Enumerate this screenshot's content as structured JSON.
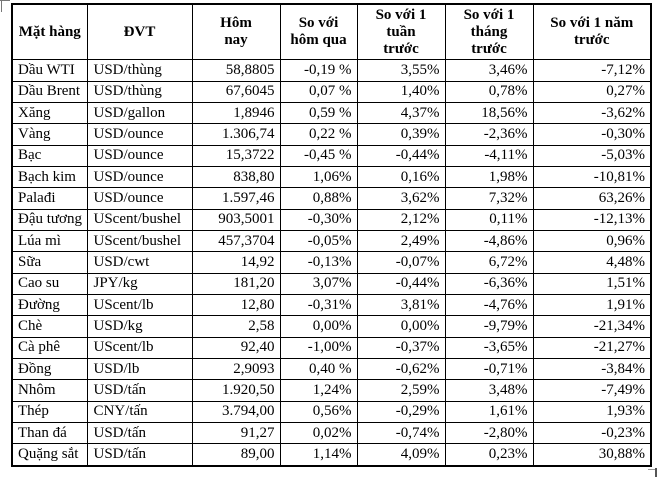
{
  "page": {
    "background_color": "#ffffff",
    "description_colors": {
      "header_accent": "#000080",
      "table_border": "#000000",
      "text": "#000000"
    }
  },
  "table": {
    "header": {
      "columns": [
        {
          "label": "Mặt hàng"
        },
        {
          "label": "ĐVT"
        },
        {
          "label": "Hôm nay"
        },
        {
          "label": "So với hôm qua"
        },
        {
          "label": "So với 1 tuần trước"
        },
        {
          "label": "So với 1 tháng trước"
        },
        {
          "label": "So với 1 năm trước"
        }
      ]
    },
    "rows": [
      {
        "name": "Dầu WTI",
        "unit": "USD/thùng",
        "today": "58,8805",
        "vs_yesterday": "-0,19 %",
        "vs_week": "3,55%",
        "vs_month": "3,46%",
        "vs_year": "-7,12%"
      },
      {
        "name": "Dầu Brent",
        "unit": "USD/thùng",
        "today": "67,6045",
        "vs_yesterday": "0,07 %",
        "vs_week": "1,40%",
        "vs_month": "0,78%",
        "vs_year": "0,27%"
      },
      {
        "name": "Xăng",
        "unit": "USD/gallon",
        "today": "1,8946",
        "vs_yesterday": "0,59 %",
        "vs_week": "4,37%",
        "vs_month": "18,56%",
        "vs_year": "-3,62%"
      },
      {
        "name": "Vàng",
        "unit": "USD/ounce",
        "today": "1.306,74",
        "vs_yesterday": "0,22 %",
        "vs_week": "0,39%",
        "vs_month": "-2,36%",
        "vs_year": "-0,30%"
      },
      {
        "name": "Bạc",
        "unit": "USD/ounce",
        "today": "15,3722",
        "vs_yesterday": "-0,45 %",
        "vs_week": "-0,44%",
        "vs_month": "-4,11%",
        "vs_year": "-5,03%"
      },
      {
        "name": "Bạch kim",
        "unit": "USD/ounce",
        "today": "838,80",
        "vs_yesterday": "1,06%",
        "vs_week": "0,16%",
        "vs_month": "1,98%",
        "vs_year": "-10,81%"
      },
      {
        "name": "Palađi",
        "unit": "USD/ounce",
        "today": "1.597,46",
        "vs_yesterday": "0,88%",
        "vs_week": "3,62%",
        "vs_month": "7,32%",
        "vs_year": "63,26%"
      },
      {
        "name": "Đậu tương",
        "unit": "UScent/bushel",
        "today": "903,5001",
        "vs_yesterday": "-0,30%",
        "vs_week": "2,12%",
        "vs_month": "0,11%",
        "vs_year": "-12,13%"
      },
      {
        "name": "Lúa mì",
        "unit": "UScent/bushel",
        "today": "457,3704",
        "vs_yesterday": "-0,05%",
        "vs_week": "2,49%",
        "vs_month": "-4,86%",
        "vs_year": "0,96%"
      },
      {
        "name": "Sữa",
        "unit": "USD/cwt",
        "today": "14,92",
        "vs_yesterday": "-0,13%",
        "vs_week": "-0,07%",
        "vs_month": "6,72%",
        "vs_year": "4,48%"
      },
      {
        "name": "Cao su",
        "unit": "JPY/kg",
        "today": "181,20",
        "vs_yesterday": "3,07%",
        "vs_week": "-0,44%",
        "vs_month": "-6,36%",
        "vs_year": "1,51%"
      },
      {
        "name": "Đường",
        "unit": "UScent/lb",
        "today": "12,80",
        "vs_yesterday": "-0,31%",
        "vs_week": "3,81%",
        "vs_month": "-4,76%",
        "vs_year": "1,91%"
      },
      {
        "name": "Chè",
        "unit": "USD/kg",
        "today": "2,58",
        "vs_yesterday": "0,00%",
        "vs_week": "0,00%",
        "vs_month": "-9,79%",
        "vs_year": "-21,34%"
      },
      {
        "name": "Cà phê",
        "unit": "UScent/lb",
        "today": "92,40",
        "vs_yesterday": "-1,00%",
        "vs_week": "-0,37%",
        "vs_month": "-3,65%",
        "vs_year": "-21,27%"
      },
      {
        "name": "Đồng",
        "unit": "USD/lb",
        "today": "2,9093",
        "vs_yesterday": "0,40 %",
        "vs_week": "-0,62%",
        "vs_month": "-0,71%",
        "vs_year": "-3,84%"
      },
      {
        "name": "Nhôm",
        "unit": "USD/tấn",
        "today": "1.920,50",
        "vs_yesterday": "1,24%",
        "vs_week": "2,59%",
        "vs_month": "3,48%",
        "vs_year": "-7,49%"
      },
      {
        "name": "Thép",
        "unit": "CNY/tấn",
        "today": "3.794,00",
        "vs_yesterday": "0,56%",
        "vs_week": "-0,29%",
        "vs_month": "1,61%",
        "vs_year": "1,93%"
      },
      {
        "name": "Than đá",
        "unit": "USD/tấn",
        "today": "91,27",
        "vs_yesterday": "0,02%",
        "vs_week": "-0,74%",
        "vs_month": "-2,80%",
        "vs_year": "-0,23%"
      },
      {
        "name": "Quặng sắt",
        "unit": "USD/tấn",
        "today": "89,00",
        "vs_yesterday": "1,14%",
        "vs_week": "4,09%",
        "vs_month": "0,23%",
        "vs_year": "30,88%"
      }
    ]
  }
}
